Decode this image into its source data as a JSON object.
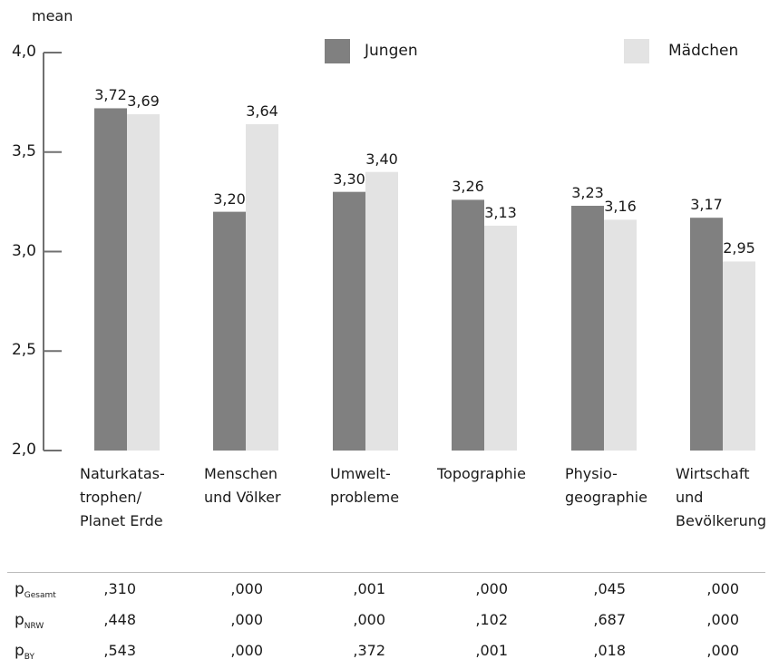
{
  "chart_data": {
    "type": "bar",
    "ylabel": "mean",
    "ylim": [
      2.0,
      4.0
    ],
    "yticks": [
      "2,0",
      "2,5",
      "3,0",
      "3,5",
      "4,0"
    ],
    "ytick_values": [
      2.0,
      2.5,
      3.0,
      3.5,
      4.0
    ],
    "categories": [
      "Naturkatas-\ntrophen/\nPlanet Erde",
      "Menschen\nund Völker",
      "Umwelt-\nprobleme",
      "Topographie",
      "Physio-\ngeographie",
      "Wirtschaft\nund\nBevölkerung"
    ],
    "series": [
      {
        "name": "Jungen",
        "color": "#808080",
        "values": [
          3.72,
          3.2,
          3.3,
          3.26,
          3.23,
          3.17
        ],
        "labels": [
          "3,72",
          "3,20",
          "3,30",
          "3,26",
          "3,23",
          "3,17"
        ]
      },
      {
        "name": "Mädchen",
        "color": "#e3e3e3",
        "values": [
          3.69,
          3.64,
          3.4,
          3.13,
          3.16,
          2.95
        ],
        "labels": [
          "3,69",
          "3,64",
          "3,40",
          "3,13",
          "3,16",
          "2,95"
        ]
      }
    ],
    "legend": "top"
  },
  "p_table": [
    {
      "name": "p",
      "sub": "Gesamt",
      "values": [
        ",310",
        ",000",
        ",001",
        ",000",
        ",045",
        ",000"
      ]
    },
    {
      "name": "p",
      "sub": "NRW",
      "values": [
        ",448",
        ",000",
        ",000",
        ",102",
        ",687",
        ",000"
      ]
    },
    {
      "name": "p",
      "sub": "BY",
      "values": [
        ",543",
        ",000",
        ",372",
        ",001",
        ",018",
        ",000"
      ]
    }
  ]
}
